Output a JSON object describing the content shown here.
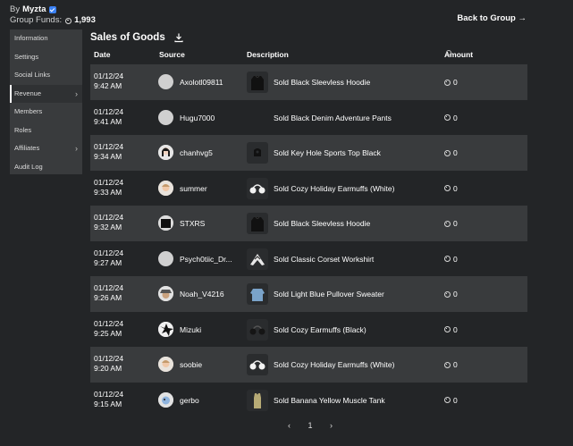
{
  "header": {
    "by_label": "By",
    "owner": "Myzta",
    "funds_label": "Group Funds:",
    "funds_value": "1,993",
    "back_label": "Back to Group →"
  },
  "sidebar": {
    "items": [
      {
        "label": "Information"
      },
      {
        "label": "Settings"
      },
      {
        "label": "Social Links"
      },
      {
        "label": "Revenue",
        "active": true,
        "chevron": true
      },
      {
        "label": "Members"
      },
      {
        "label": "Roles"
      },
      {
        "label": "Affiliates",
        "chevron": true
      },
      {
        "label": "Audit Log"
      }
    ]
  },
  "main": {
    "title": "Sales of Goods",
    "columns": {
      "date": "Date",
      "source": "Source",
      "description": "Description",
      "amount": "Amount"
    },
    "rows": [
      {
        "date": "01/12/24",
        "time": "9:42 AM",
        "source": "Axolotl09811",
        "description": "Sold Black Sleevless Hoodie",
        "amount": "0",
        "thumb": "hoodie-black",
        "avatar": "blank"
      },
      {
        "date": "01/12/24",
        "time": "9:41 AM",
        "source": "Hugu7000",
        "description": "Sold Black Denim Adventure Pants",
        "amount": "0",
        "thumb": "none",
        "avatar": "blank"
      },
      {
        "date": "01/12/24",
        "time": "9:34 AM",
        "source": "chanhvg5",
        "description": "Sold Key Hole Sports Top Black",
        "amount": "0",
        "thumb": "top-black",
        "avatar": "character-dark-hair"
      },
      {
        "date": "01/12/24",
        "time": "9:33 AM",
        "source": "summer",
        "description": "Sold Cozy Holiday Earmuffs (White)",
        "amount": "0",
        "thumb": "earmuffs-white",
        "avatar": "character-light"
      },
      {
        "date": "01/12/24",
        "time": "9:32 AM",
        "source": "STXRS",
        "description": "Sold Black Sleevless Hoodie",
        "amount": "0",
        "thumb": "hoodie-black",
        "avatar": "character-black"
      },
      {
        "date": "01/12/24",
        "time": "9:27 AM",
        "source": "Psych0tiic_Dr...",
        "description": "Sold Classic Corset Workshirt",
        "amount": "0",
        "thumb": "shirt-white",
        "avatar": "blank"
      },
      {
        "date": "01/12/24",
        "time": "9:26 AM",
        "source": "Noah_V4216",
        "description": "Sold Light Blue Pullover Sweater",
        "amount": "0",
        "thumb": "sweater-blue",
        "avatar": "character-hat"
      },
      {
        "date": "01/12/24",
        "time": "9:25 AM",
        "source": "Mizuki",
        "description": "Sold Cozy Earmuffs (Black)",
        "amount": "0",
        "thumb": "earmuffs-black",
        "avatar": "character-bw"
      },
      {
        "date": "01/12/24",
        "time": "9:20 AM",
        "source": "soobie",
        "description": "Sold Cozy Holiday Earmuffs (White)",
        "amount": "0",
        "thumb": "earmuffs-white",
        "avatar": "character-light"
      },
      {
        "date": "01/12/24",
        "time": "9:15 AM",
        "source": "gerbo",
        "description": "Sold Banana Yellow Muscle Tank",
        "amount": "0",
        "thumb": "tank-yellow",
        "avatar": "character-blue"
      }
    ]
  },
  "pagination": {
    "prev": "‹",
    "page": "1",
    "next": "›"
  }
}
